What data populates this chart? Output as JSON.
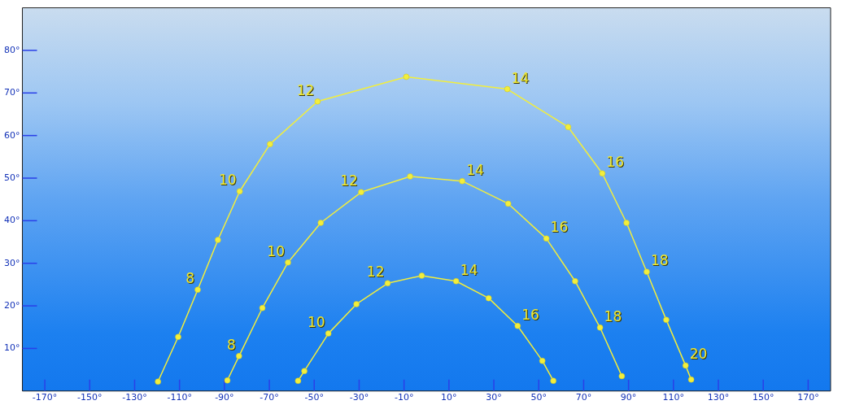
{
  "chart_data": {
    "type": "line",
    "marker": "circle",
    "grid": false,
    "xlim": [
      -180,
      180
    ],
    "ylim": [
      0,
      90
    ],
    "xticks": [
      {
        "value": -170,
        "label": "-170°"
      },
      {
        "value": -150,
        "label": "-150°"
      },
      {
        "value": -130,
        "label": "-130°"
      },
      {
        "value": -110,
        "label": "-110°"
      },
      {
        "value": -90,
        "label": "-90°"
      },
      {
        "value": -70,
        "label": "-70°"
      },
      {
        "value": -50,
        "label": "-50°"
      },
      {
        "value": -30,
        "label": "-30°"
      },
      {
        "value": -10,
        "label": "-10°"
      },
      {
        "value": 10,
        "label": "10°"
      },
      {
        "value": 30,
        "label": "30°"
      },
      {
        "value": 50,
        "label": "50°"
      },
      {
        "value": 70,
        "label": "70°"
      },
      {
        "value": 90,
        "label": "90°"
      },
      {
        "value": 110,
        "label": "110°"
      },
      {
        "value": 130,
        "label": "130°"
      },
      {
        "value": 150,
        "label": "150°"
      },
      {
        "value": 170,
        "label": "170°"
      }
    ],
    "yticks": [
      {
        "value": 10,
        "label": "10°"
      },
      {
        "value": 20,
        "label": "20°"
      },
      {
        "value": 30,
        "label": "30°"
      },
      {
        "value": 40,
        "label": "40°"
      },
      {
        "value": 50,
        "label": "50°"
      },
      {
        "value": 60,
        "label": "60°"
      },
      {
        "value": 70,
        "label": "70°"
      },
      {
        "value": 80,
        "label": "80°"
      }
    ],
    "series": [
      {
        "color": "#f2ee3c",
        "x": [
          -119.6,
          -110.6,
          -101.9,
          -92.9,
          -83.2,
          -69.7,
          -48.5,
          -9.0,
          36.0,
          63.1,
          78.3,
          89.1,
          98.1,
          106.8,
          115.4,
          117.9
        ],
        "values": [
          2.2,
          12.7,
          23.8,
          35.5,
          46.9,
          58.0,
          68.0,
          73.8,
          70.9,
          62.0,
          51.1,
          39.5,
          28.0,
          16.7,
          6.0,
          2.7
        ]
      },
      {
        "color": "#f2ee3c",
        "x": [
          -88.7,
          -83.5,
          -73.1,
          -61.7,
          -47.1,
          -29.1,
          -7.3,
          15.9,
          36.4,
          53.4,
          66.2,
          77.3,
          87.0
        ],
        "values": [
          2.5,
          8.2,
          19.5,
          30.2,
          39.5,
          46.7,
          50.4,
          49.3,
          44.0,
          35.8,
          25.8,
          14.9,
          3.5
        ]
      },
      {
        "color": "#f2ee3c",
        "x": [
          -57.2,
          -54.4,
          -43.7,
          -31.2,
          -17.3,
          -2.1,
          13.2,
          27.7,
          40.6,
          51.6,
          56.5
        ],
        "values": [
          2.4,
          4.7,
          13.5,
          20.4,
          25.3,
          27.1,
          25.8,
          21.8,
          15.3,
          7.1,
          2.4
        ]
      }
    ],
    "annotations": [
      {
        "text": "8",
        "x": -101.9,
        "y": 23.8
      },
      {
        "text": "10",
        "x": -83.2,
        "y": 46.9
      },
      {
        "text": "12",
        "x": -48.5,
        "y": 68.0
      },
      {
        "text": "14",
        "x": 36.0,
        "y": 70.9
      },
      {
        "text": "16",
        "x": 78.3,
        "y": 51.1
      },
      {
        "text": "18",
        "x": 98.1,
        "y": 28.0
      },
      {
        "text": "20",
        "x": 115.4,
        "y": 6.0
      },
      {
        "text": "8",
        "x": -83.5,
        "y": 8.2
      },
      {
        "text": "10",
        "x": -61.7,
        "y": 30.2
      },
      {
        "text": "12",
        "x": -29.1,
        "y": 46.7
      },
      {
        "text": "14",
        "x": 15.9,
        "y": 49.3
      },
      {
        "text": "16",
        "x": 53.4,
        "y": 35.8
      },
      {
        "text": "18",
        "x": 77.3,
        "y": 14.9
      },
      {
        "text": "10",
        "x": -43.7,
        "y": 13.5
      },
      {
        "text": "12",
        "x": -17.3,
        "y": 25.3
      },
      {
        "text": "14",
        "x": 13.2,
        "y": 25.8
      },
      {
        "text": "16",
        "x": 40.6,
        "y": 15.3
      }
    ]
  }
}
